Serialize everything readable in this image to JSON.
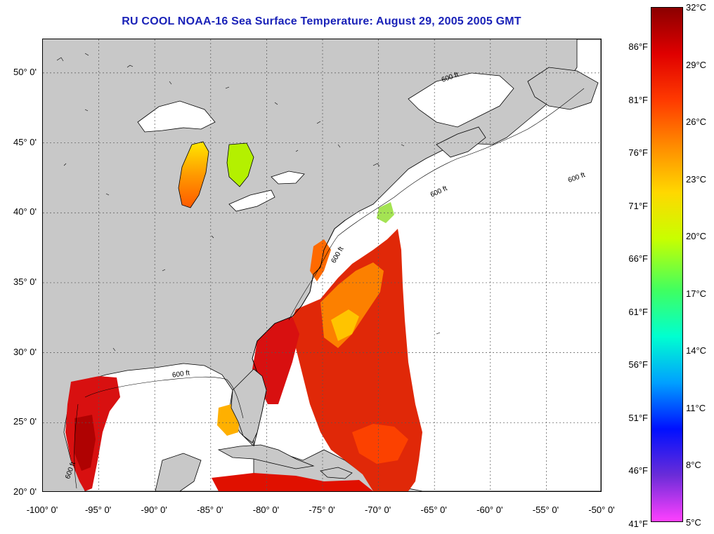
{
  "title": "RU COOL  NOAA-16  Sea Surface Temperature:  August 29, 2005 2005 GMT",
  "map": {
    "lat_labels": [
      "50° 0'",
      "45° 0'",
      "40° 0'",
      "35° 0'",
      "30° 0'",
      "25° 0'",
      "20° 0'"
    ],
    "lon_labels": [
      "-100° 0'",
      "-95° 0'",
      "-90° 0'",
      "-85° 0'",
      "-80° 0'",
      "-75° 0'",
      "-70° 0'",
      "-65° 0'",
      "-60° 0'",
      "-55° 0'",
      "-50° 0'"
    ],
    "lat_range": [
      20,
      52.4
    ],
    "lon_range": [
      -100,
      -50
    ],
    "contour_labels": [
      "600 ft",
      "600 ft",
      "600 ft",
      "600 ft",
      "600 ft",
      "600 ft"
    ],
    "colors": {
      "land": "#c8c8c8",
      "ocean_no_data": "#ffffff",
      "grid": "#555555"
    }
  },
  "colorbar": {
    "celsius_labels": [
      "32°C",
      "29°C",
      "26°C",
      "23°C",
      "20°C",
      "17°C",
      "14°C",
      "11°C",
      "8°C",
      "5°C"
    ],
    "fahrenheit_labels": [
      "86°F",
      "81°F",
      "76°F",
      "71°F",
      "66°F",
      "61°F",
      "56°F",
      "51°F",
      "46°F",
      "41°F"
    ],
    "range_c": [
      5,
      32
    ],
    "colors": [
      "#8b0000",
      "#e00000",
      "#ff3a00",
      "#ff8c00",
      "#ffd800",
      "#c8ff00",
      "#40ff60",
      "#00ffd0",
      "#00a0ff",
      "#0010ff",
      "#6a2cd8",
      "#ff40ff"
    ]
  }
}
